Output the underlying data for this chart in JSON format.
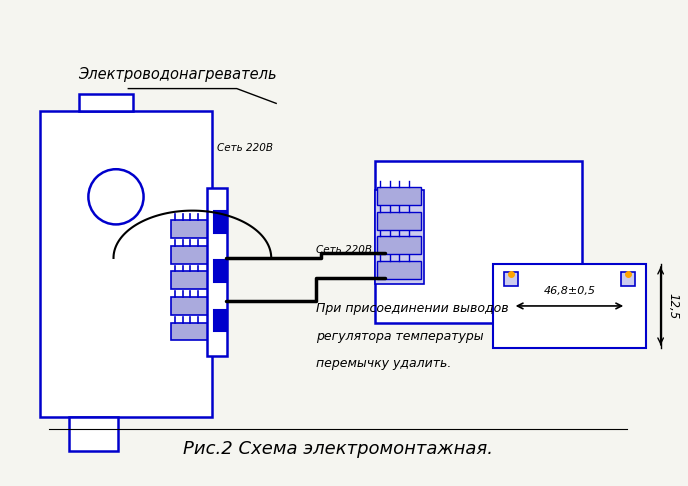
{
  "bg_color": "#f5f5f0",
  "blue": "#0000cc",
  "dark_blue": "#00008B",
  "black": "#000000",
  "orange": "#FFA500",
  "gray": "#888888",
  "title_text": "Рис.2 Схема электромонтажная.",
  "label_elektro": "Электроводонагреватель",
  "label_set1": "Сеть 220B",
  "label_set2": "Сеть 220B",
  "label_note1": "При присоединении выводов",
  "label_note2": "регулятора температуры",
  "label_note3": "перемычку удалить.",
  "label_dim1": "46,8±0,5",
  "label_dim2": "12,5"
}
